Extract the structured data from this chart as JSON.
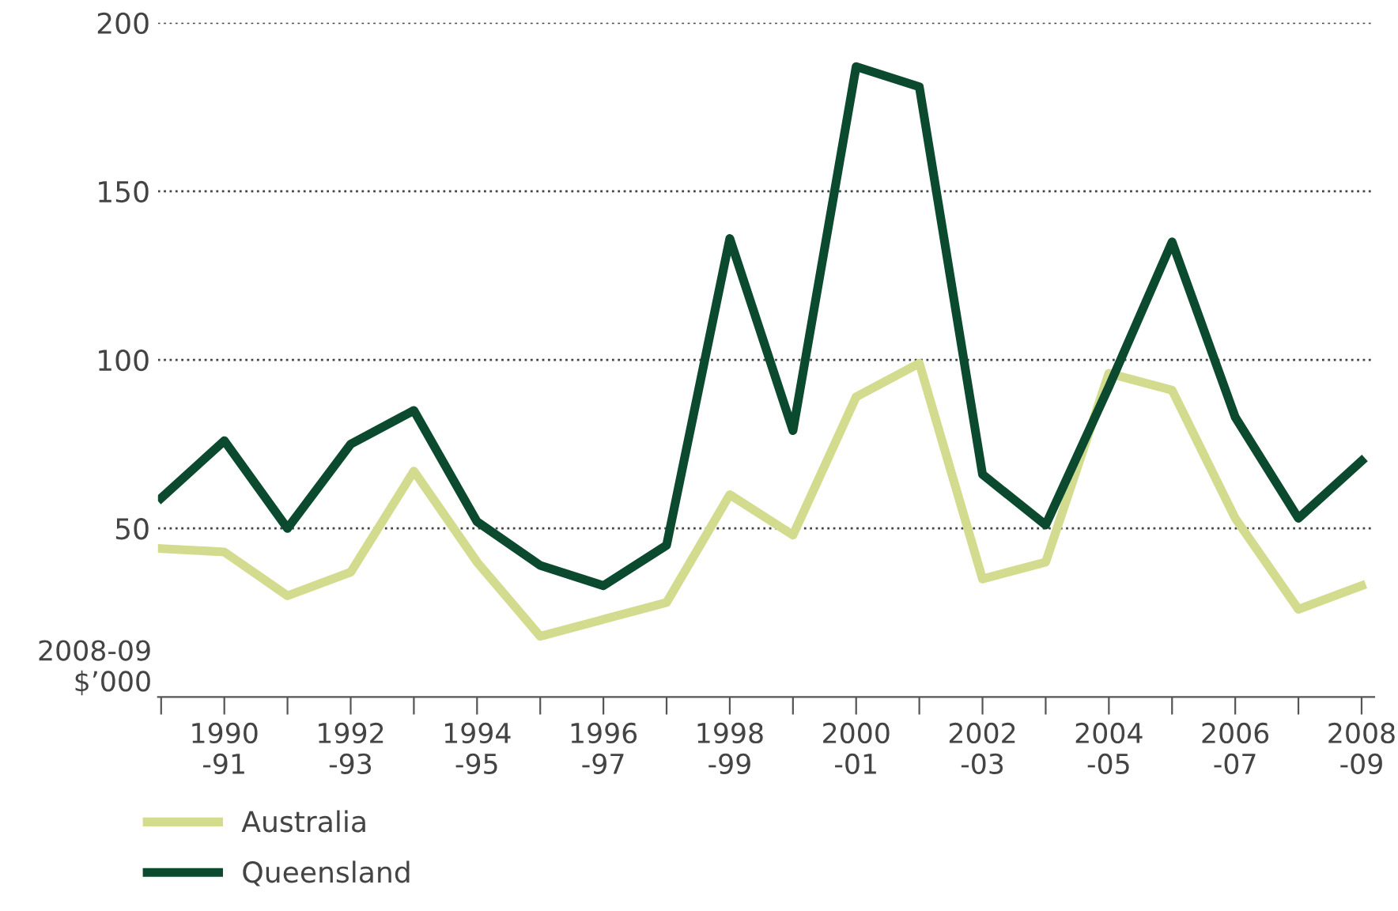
{
  "chart_data": {
    "type": "line",
    "ylabel": "2008-09\n$’000",
    "categories": [
      null,
      "1990\n-91",
      null,
      "1992\n-93",
      null,
      "1994\n-95",
      null,
      "1996\n-97",
      null,
      "1998\n-99",
      null,
      "2000\n-01",
      null,
      "2002\n-03",
      null,
      "2004\n-05",
      null,
      "2006\n-07",
      null,
      "2008\n-09"
    ],
    "series": [
      {
        "name": "Australia",
        "color": "#d3dc8e",
        "values": [
          44,
          43,
          30,
          37,
          67,
          40,
          18,
          23,
          28,
          60,
          48,
          89,
          99,
          35,
          40,
          96,
          91,
          53,
          26,
          33
        ]
      },
      {
        "name": "Queensland",
        "color": "#0b4a2e",
        "values": [
          59,
          76,
          50,
          75,
          85,
          52,
          39,
          33,
          45,
          136,
          79,
          187,
          181,
          66,
          51,
          92,
          135,
          83,
          53,
          70
        ]
      }
    ],
    "ylim": [
      0,
      200
    ],
    "yticks": [
      50,
      100,
      150,
      200
    ],
    "grid": "y",
    "legend": "bottom left",
    "line_style": "solid",
    "marker": "none"
  }
}
